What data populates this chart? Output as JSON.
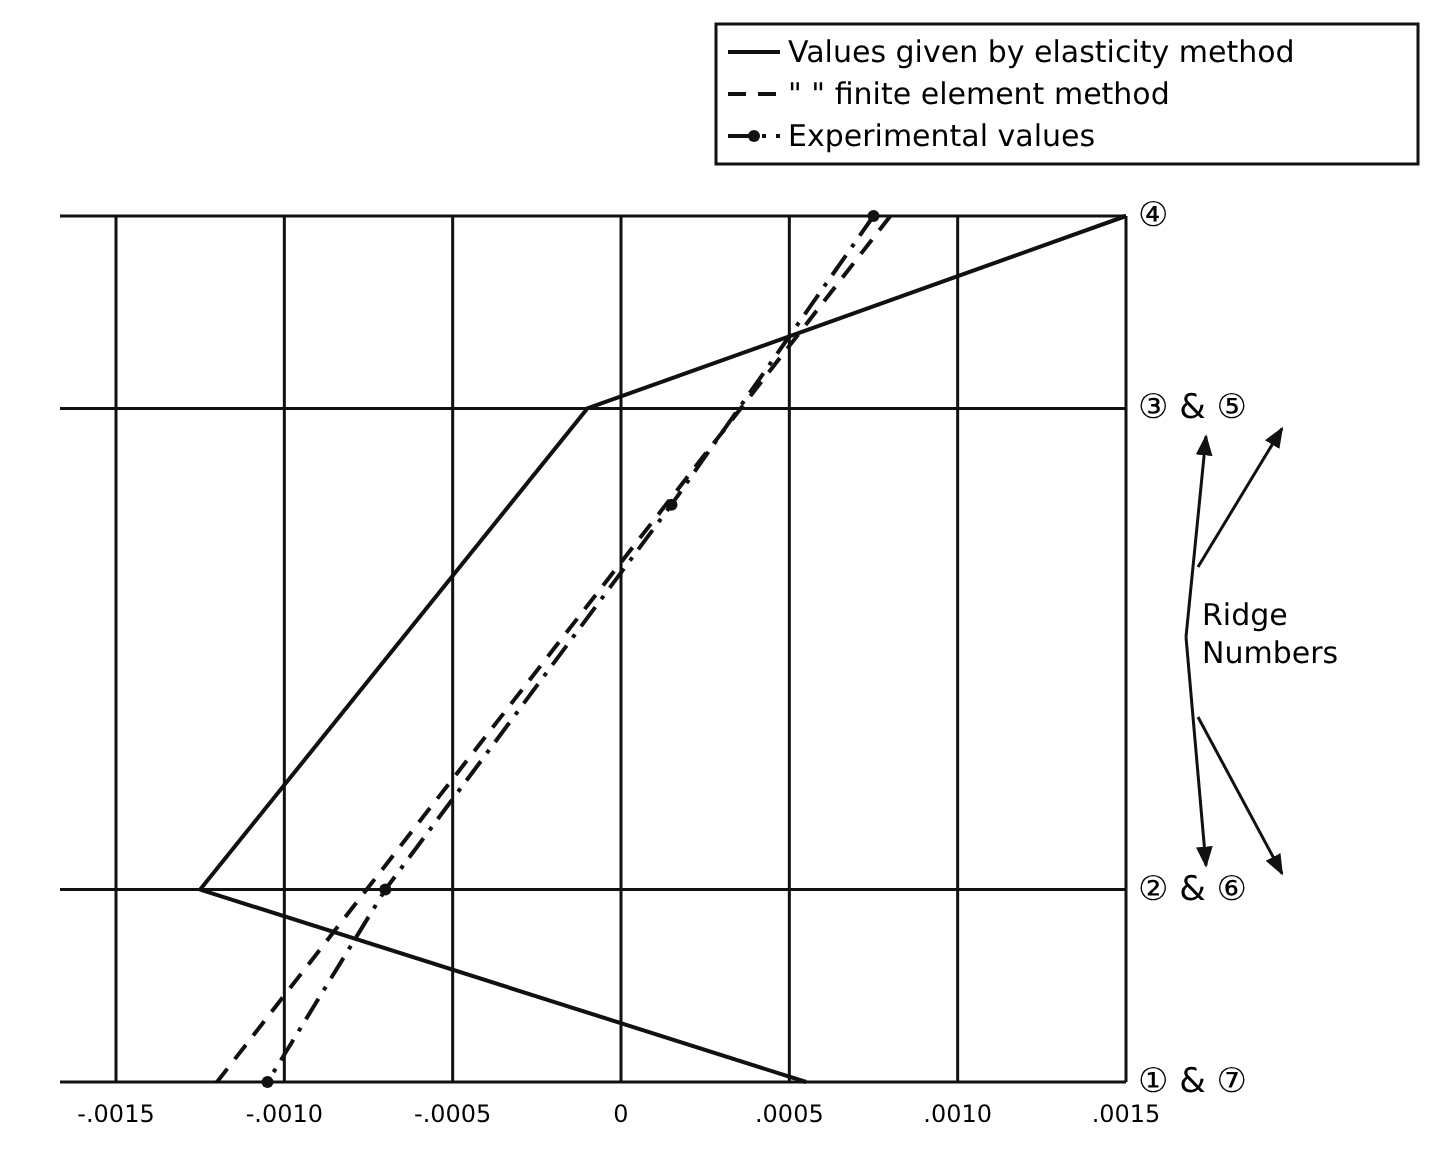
{
  "chart_data": {
    "type": "line",
    "orientation": "horizontal",
    "xlim": [
      -0.0015,
      0.0015
    ],
    "xticks": [
      {
        "value": -0.0015,
        "label": "-.0015"
      },
      {
        "value": -0.001,
        "label": "-.0010"
      },
      {
        "value": -0.0005,
        "label": "-.0005"
      },
      0,
      {
        "value": 0.0005,
        "label": ".0005"
      },
      {
        "value": 0.001,
        "label": ".0010"
      },
      {
        "value": 0.0015,
        "label": ".0015"
      }
    ],
    "categories": [
      "④",
      null,
      "③ & ⑤",
      null,
      null,
      null,
      null,
      "② & ⑥",
      null,
      "① & ⑦"
    ],
    "grid": true,
    "legend": "top right",
    "annotations": [
      "Ridge Numbers"
    ],
    "series": [
      {
        "name": "Values given by elasticity method",
        "color": "#111111",
        "line_style": "solid",
        "values": [
          0.0015,
          null,
          -0.0001,
          null,
          null,
          null,
          null,
          -0.00125,
          null,
          0.00055
        ]
      },
      {
        "name": "\"      \" finite element method",
        "color": "#111111",
        "line_style": "dashed",
        "values": [
          0.0008,
          null,
          null,
          null,
          null,
          null,
          null,
          null,
          null,
          -0.0012
        ]
      },
      {
        "name": "Experimental values",
        "color": "#111111",
        "line_style": "dashdot",
        "marker": "circle",
        "values": [
          0.00075,
          null,
          null,
          0.00015,
          null,
          null,
          null,
          -0.0007,
          null,
          -0.00105
        ]
      }
    ]
  }
}
